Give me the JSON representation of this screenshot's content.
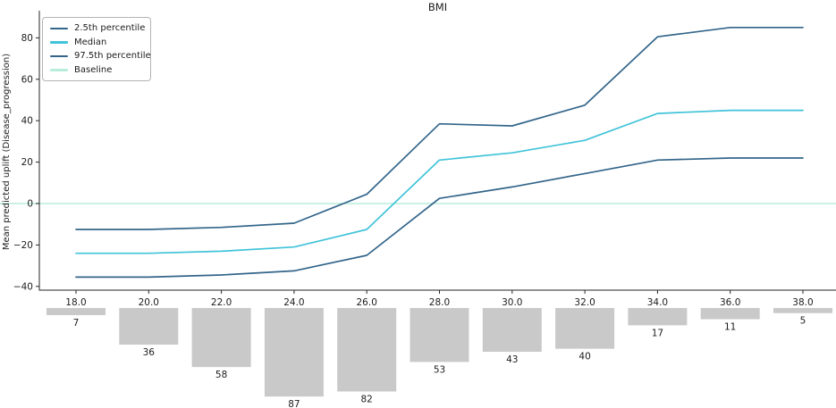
{
  "chart_data": {
    "type": "line",
    "title": "BMI",
    "ylabel": "Mean predicted uplift (Disease_progression)",
    "xlabel": "",
    "grid": false,
    "legend_position": "upper-left",
    "x": [
      18,
      20,
      22,
      24,
      26,
      28,
      30,
      32,
      34,
      36,
      38
    ],
    "x_tick_labels": [
      "18.0",
      "20.0",
      "22.0",
      "24.0",
      "26.0",
      "28.0",
      "30.0",
      "32.0",
      "34.0",
      "36.0",
      "38.0"
    ],
    "y_ticks": [
      80,
      60,
      40,
      20,
      0,
      -20,
      -40
    ],
    "y_tick_labels": [
      "80",
      "60",
      "40",
      "20",
      "0",
      "−20",
      "−40"
    ],
    "ylim": [
      -43,
      93
    ],
    "series": [
      {
        "name": "2.5th percentile",
        "color": "#33658a",
        "values": [
          -35.5,
          -35.5,
          -34.5,
          -32.5,
          -25,
          2.5,
          8,
          14.5,
          21,
          22,
          22
        ]
      },
      {
        "name": "Median",
        "color": "#41c3d9",
        "values": [
          -24,
          -24,
          -23,
          -21,
          -12.5,
          21,
          24.5,
          30.5,
          43.5,
          45,
          45
        ]
      },
      {
        "name": "97.5th percentile",
        "color": "#33658a",
        "values": [
          -12.5,
          -12.5,
          -11.5,
          -9.5,
          4.5,
          38.5,
          37.5,
          47.5,
          80.5,
          85,
          85
        ]
      },
      {
        "name": "Baseline",
        "color": "#b8eed9",
        "type": "hline",
        "value": 0
      }
    ],
    "histogram": {
      "counts": [
        7,
        36,
        58,
        87,
        82,
        53,
        43,
        40,
        17,
        11,
        5
      ],
      "color": "#c9c9c9"
    }
  }
}
